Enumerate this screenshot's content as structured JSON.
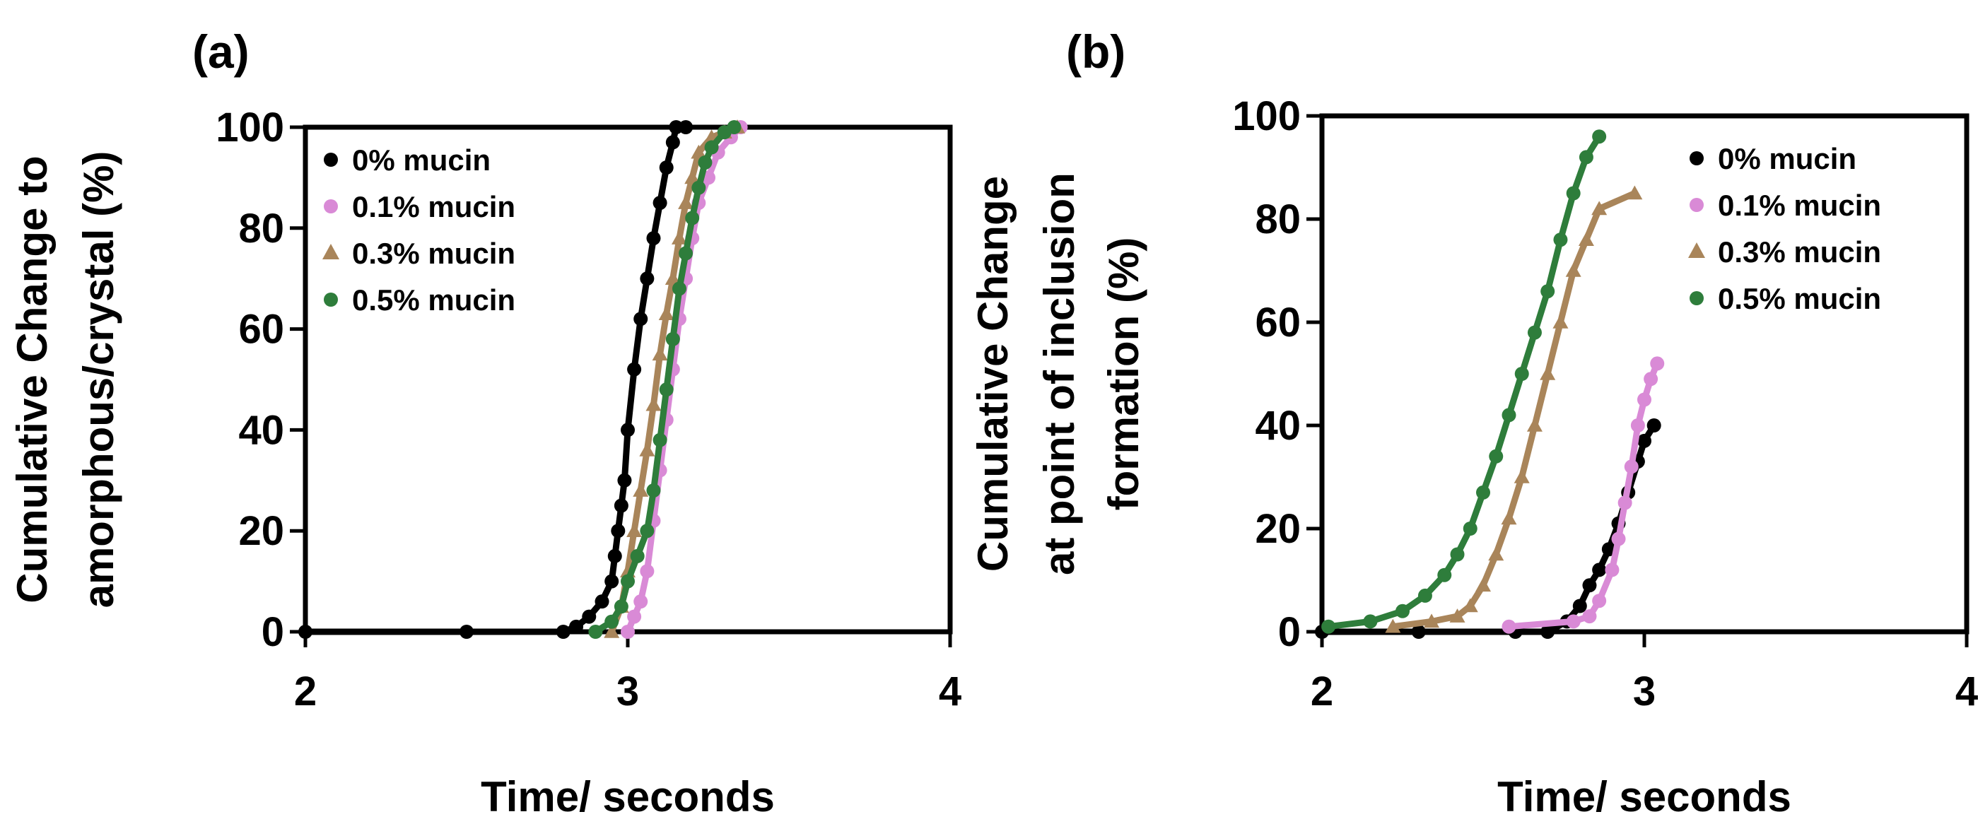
{
  "chart_data": [
    {
      "panel": "(a)",
      "type": "scatter",
      "xlabel": "Time/ seconds",
      "ylabel": [
        "Cumulative Change to",
        "amorphous/crystal  (%)"
      ],
      "xlim": [
        2,
        4
      ],
      "ylim": [
        0,
        100
      ],
      "xticks": [
        "2",
        "3",
        "4"
      ],
      "yticks": [
        "0",
        "20",
        "40",
        "60",
        "80",
        "100"
      ],
      "legend_position": "top-left",
      "series": [
        {
          "name": "0% mucin",
          "color": "#000000",
          "marker": "circle",
          "x": [
            2.0,
            2.5,
            2.8,
            2.84,
            2.88,
            2.92,
            2.95,
            2.96,
            2.97,
            2.98,
            2.99,
            3.0,
            3.02,
            3.04,
            3.06,
            3.08,
            3.1,
            3.12,
            3.14,
            3.15,
            3.18
          ],
          "y": [
            0,
            0,
            0,
            1,
            3,
            6,
            10,
            15,
            20,
            25,
            30,
            40,
            52,
            62,
            70,
            78,
            85,
            92,
            97,
            100,
            100
          ]
        },
        {
          "name": "0.1% mucin",
          "color": "#d98ad6",
          "marker": "circle",
          "x": [
            3.0,
            3.02,
            3.04,
            3.06,
            3.08,
            3.1,
            3.12,
            3.14,
            3.16,
            3.18,
            3.2,
            3.22,
            3.25,
            3.28,
            3.32,
            3.35
          ],
          "y": [
            0,
            3,
            6,
            12,
            22,
            32,
            42,
            52,
            62,
            70,
            78,
            85,
            90,
            95,
            98,
            100
          ]
        },
        {
          "name": "0.3% mucin",
          "color": "#a9855a",
          "marker": "triangle",
          "x": [
            2.95,
            2.98,
            3.0,
            3.02,
            3.04,
            3.06,
            3.08,
            3.1,
            3.12,
            3.14,
            3.16,
            3.18,
            3.2,
            3.22,
            3.26,
            3.3,
            3.34
          ],
          "y": [
            0,
            5,
            12,
            20,
            28,
            36,
            45,
            55,
            63,
            70,
            78,
            85,
            90,
            95,
            98,
            99,
            100
          ]
        },
        {
          "name": "0.5% mucin",
          "color": "#2e7d3b",
          "marker": "circle",
          "x": [
            2.9,
            2.95,
            2.98,
            3.0,
            3.03,
            3.06,
            3.08,
            3.1,
            3.12,
            3.14,
            3.16,
            3.18,
            3.2,
            3.22,
            3.24,
            3.26,
            3.3,
            3.33
          ],
          "y": [
            0,
            2,
            5,
            10,
            15,
            20,
            28,
            38,
            48,
            58,
            68,
            75,
            82,
            88,
            93,
            96,
            99,
            100
          ]
        }
      ]
    },
    {
      "panel": "(b)",
      "type": "scatter",
      "xlabel": "Time/ seconds",
      "ylabel": [
        "Cumulative Change",
        "at point of inclusion",
        "formation  (%)"
      ],
      "xlim": [
        2,
        4
      ],
      "ylim": [
        0,
        100
      ],
      "xticks": [
        "2",
        "3",
        "4"
      ],
      "yticks": [
        "0",
        "20",
        "40",
        "60",
        "80",
        "100"
      ],
      "legend_position": "top-right",
      "series": [
        {
          "name": "0% mucin",
          "color": "#000000",
          "marker": "circle",
          "x": [
            2.0,
            2.3,
            2.6,
            2.7,
            2.76,
            2.8,
            2.83,
            2.86,
            2.89,
            2.92,
            2.95,
            2.98,
            3.0,
            3.03
          ],
          "y": [
            0,
            0,
            0,
            0,
            2,
            5,
            9,
            12,
            16,
            21,
            27,
            33,
            37,
            40
          ]
        },
        {
          "name": "0.1% mucin",
          "color": "#d98ad6",
          "marker": "circle",
          "x": [
            2.58,
            2.78,
            2.83,
            2.86,
            2.9,
            2.92,
            2.94,
            2.96,
            2.98,
            3.0,
            3.02,
            3.04
          ],
          "y": [
            1,
            2,
            3,
            6,
            12,
            18,
            25,
            32,
            40,
            45,
            49,
            52
          ]
        },
        {
          "name": "0.3% mucin",
          "color": "#a9855a",
          "marker": "triangle",
          "x": [
            2.22,
            2.34,
            2.42,
            2.46,
            2.5,
            2.54,
            2.58,
            2.62,
            2.66,
            2.7,
            2.74,
            2.78,
            2.82,
            2.86,
            2.97
          ],
          "y": [
            1,
            2,
            3,
            5,
            9,
            15,
            22,
            30,
            40,
            50,
            60,
            70,
            76,
            82,
            85
          ]
        },
        {
          "name": "0.5% mucin",
          "color": "#2e7d3b",
          "marker": "circle",
          "x": [
            2.02,
            2.15,
            2.25,
            2.32,
            2.38,
            2.42,
            2.46,
            2.5,
            2.54,
            2.58,
            2.62,
            2.66,
            2.7,
            2.74,
            2.78,
            2.82,
            2.86
          ],
          "y": [
            1,
            2,
            4,
            7,
            11,
            15,
            20,
            27,
            34,
            42,
            50,
            58,
            66,
            76,
            85,
            92,
            96
          ]
        }
      ]
    }
  ]
}
